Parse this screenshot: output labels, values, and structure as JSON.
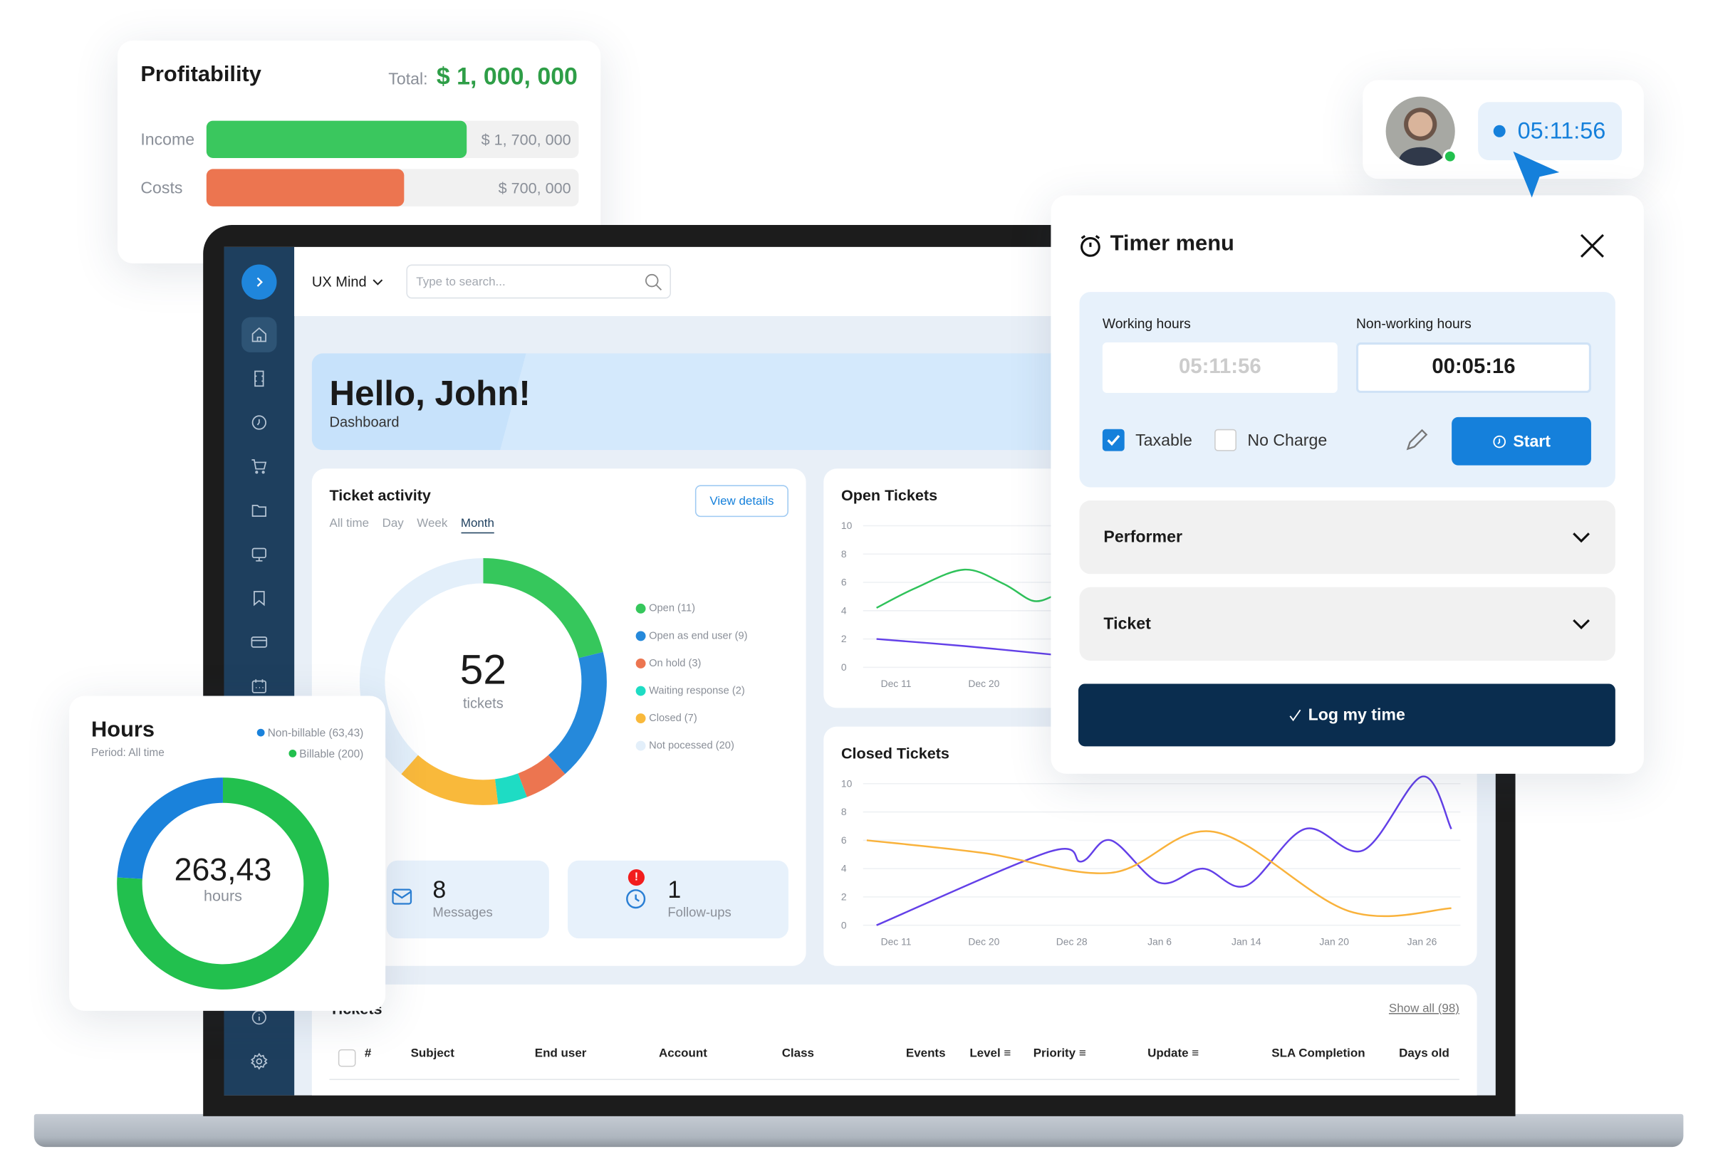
{
  "colors": {
    "accent": "#1580db",
    "green": "#22c04e",
    "dark_navy": "#0a2d4f",
    "sidebar": "#1e3f5e"
  },
  "profitability": {
    "title": "Profitability",
    "total_label": "Total:",
    "total_value": "$ 1, 000, 000",
    "rows": [
      {
        "label": "Income",
        "value": "$ 1, 700, 000",
        "fill": 0.7,
        "color": "#3ac75e"
      },
      {
        "label": "Costs",
        "value": "$ 700, 000",
        "fill": 0.53,
        "color": "#ec7550"
      }
    ]
  },
  "app": {
    "workspace": "UX Mind",
    "search_placeholder": "Type to search...",
    "sidebar_icons": [
      "home-icon",
      "ticket-icon",
      "clock-icon",
      "cart-icon",
      "folder-icon",
      "monitor-icon",
      "bookmark-icon",
      "card-icon",
      "calendar-icon",
      "info-icon",
      "gear-icon"
    ]
  },
  "banner": {
    "greeting": "Hello, John!",
    "subtitle": "Dashboard"
  },
  "ticket_activity": {
    "title": "Ticket activity",
    "view_details": "View details",
    "tabs": [
      "All time",
      "Day",
      "Week",
      "Month"
    ],
    "active_tab": "Month",
    "total": "52",
    "total_unit": "tickets"
  },
  "messages": {
    "count": "8",
    "label": "Messages"
  },
  "followups": {
    "count": "1",
    "label": "Follow-ups",
    "badge": "!"
  },
  "tickets_table": {
    "title": "Tickets",
    "show_all": "Show all (98)",
    "columns": [
      "#",
      "Subject",
      "End user",
      "Account",
      "Class",
      "Events",
      "Level",
      "Priority",
      "Update",
      "SLA Completion",
      "Days old"
    ]
  },
  "hours": {
    "title": "Hours",
    "period": "Period: All time",
    "total": "263,43",
    "unit": "hours"
  },
  "timer_chip": {
    "time": "05:11:56"
  },
  "timer_menu": {
    "title": "Timer menu",
    "working_label": "Working hours",
    "working_value": "05:11:56",
    "nonworking_label": "Non-working hours",
    "nonworking_value": "00:05:16",
    "taxable_label": "Taxable",
    "taxable_checked": true,
    "nocharge_label": "No Charge",
    "nocharge_checked": false,
    "start_label": "Start",
    "performer_label": "Performer",
    "ticket_label": "Ticket",
    "log_label": "Log my time"
  },
  "chart_data": [
    {
      "type": "pie",
      "title": "Ticket activity",
      "categories": [
        "Open (11)",
        "Open as end user (9)",
        "On hold (3)",
        "Waiting response (2)",
        "Closed (7)",
        "Not pocessed (20)"
      ],
      "values": [
        11,
        9,
        3,
        2,
        7,
        20
      ],
      "colors": [
        "#36c75c",
        "#2589db",
        "#ec7550",
        "#1edcc4",
        "#f9b93b",
        "#e3effa"
      ],
      "legend": "right"
    },
    {
      "type": "pie",
      "title": "Hours",
      "categories": [
        "Billable (200)",
        "Non-billable (63,43)"
      ],
      "values": [
        200,
        63.43
      ],
      "colors": [
        "#22c04e",
        "#1a82db"
      ],
      "legend": "top-right"
    },
    {
      "type": "line",
      "title": "Open Tickets",
      "ylim": [
        0,
        10
      ],
      "yticks": [
        0,
        2,
        4,
        6,
        8,
        10
      ],
      "xticks": [
        "Dec 11",
        "Dec 20"
      ],
      "grid": true,
      "series": [
        {
          "color": "#2fc25a",
          "points": [
            [
              "Dec 9",
              4.2
            ],
            [
              "Dec 13",
              5.6
            ],
            [
              "Dec 18",
              6.9
            ],
            [
              "Dec 22",
              5.9
            ],
            [
              "Dec 25",
              4.7
            ],
            [
              "Dec 27",
              5.0
            ]
          ]
        },
        {
          "color": "#6340e8",
          "points": [
            [
              "Dec 9",
              2.0
            ],
            [
              "Dec 18",
              1.5
            ],
            [
              "Dec 27",
              0.9
            ]
          ]
        }
      ]
    },
    {
      "type": "line",
      "title": "Closed Tickets",
      "ylim": [
        0,
        10
      ],
      "yticks": [
        0,
        2,
        4,
        6,
        8,
        10
      ],
      "xticks": [
        "Dec 11",
        "Dec 20",
        "Dec 28",
        "Jan 6",
        "Jan 14",
        "Jan 20",
        "Jan 26"
      ],
      "grid": true,
      "series": [
        {
          "color": "#6340e8",
          "points": [
            [
              "Dec 9",
              0
            ],
            [
              "Dec 26",
              5.2
            ],
            [
              "Dec 29",
              4.5
            ],
            [
              "Jan 1",
              6.0
            ],
            [
              "Jan 6",
              3.0
            ],
            [
              "Jan 10",
              4.0
            ],
            [
              "Jan 14",
              2.8
            ],
            [
              "Jan 18",
              6.8
            ],
            [
              "Jan 22",
              5.3
            ],
            [
              "Jan 26",
              10.5
            ],
            [
              "Jan 28",
              6.8
            ]
          ]
        },
        {
          "color": "#f9b23b",
          "points": [
            [
              "Dec 8",
              6.0
            ],
            [
              "Dec 20",
              5.1
            ],
            [
              "Jan 1",
              3.7
            ],
            [
              "Jan 11",
              6.6
            ],
            [
              "Jan 21",
              1.0
            ],
            [
              "Jan 28",
              1.2
            ]
          ]
        }
      ]
    }
  ]
}
